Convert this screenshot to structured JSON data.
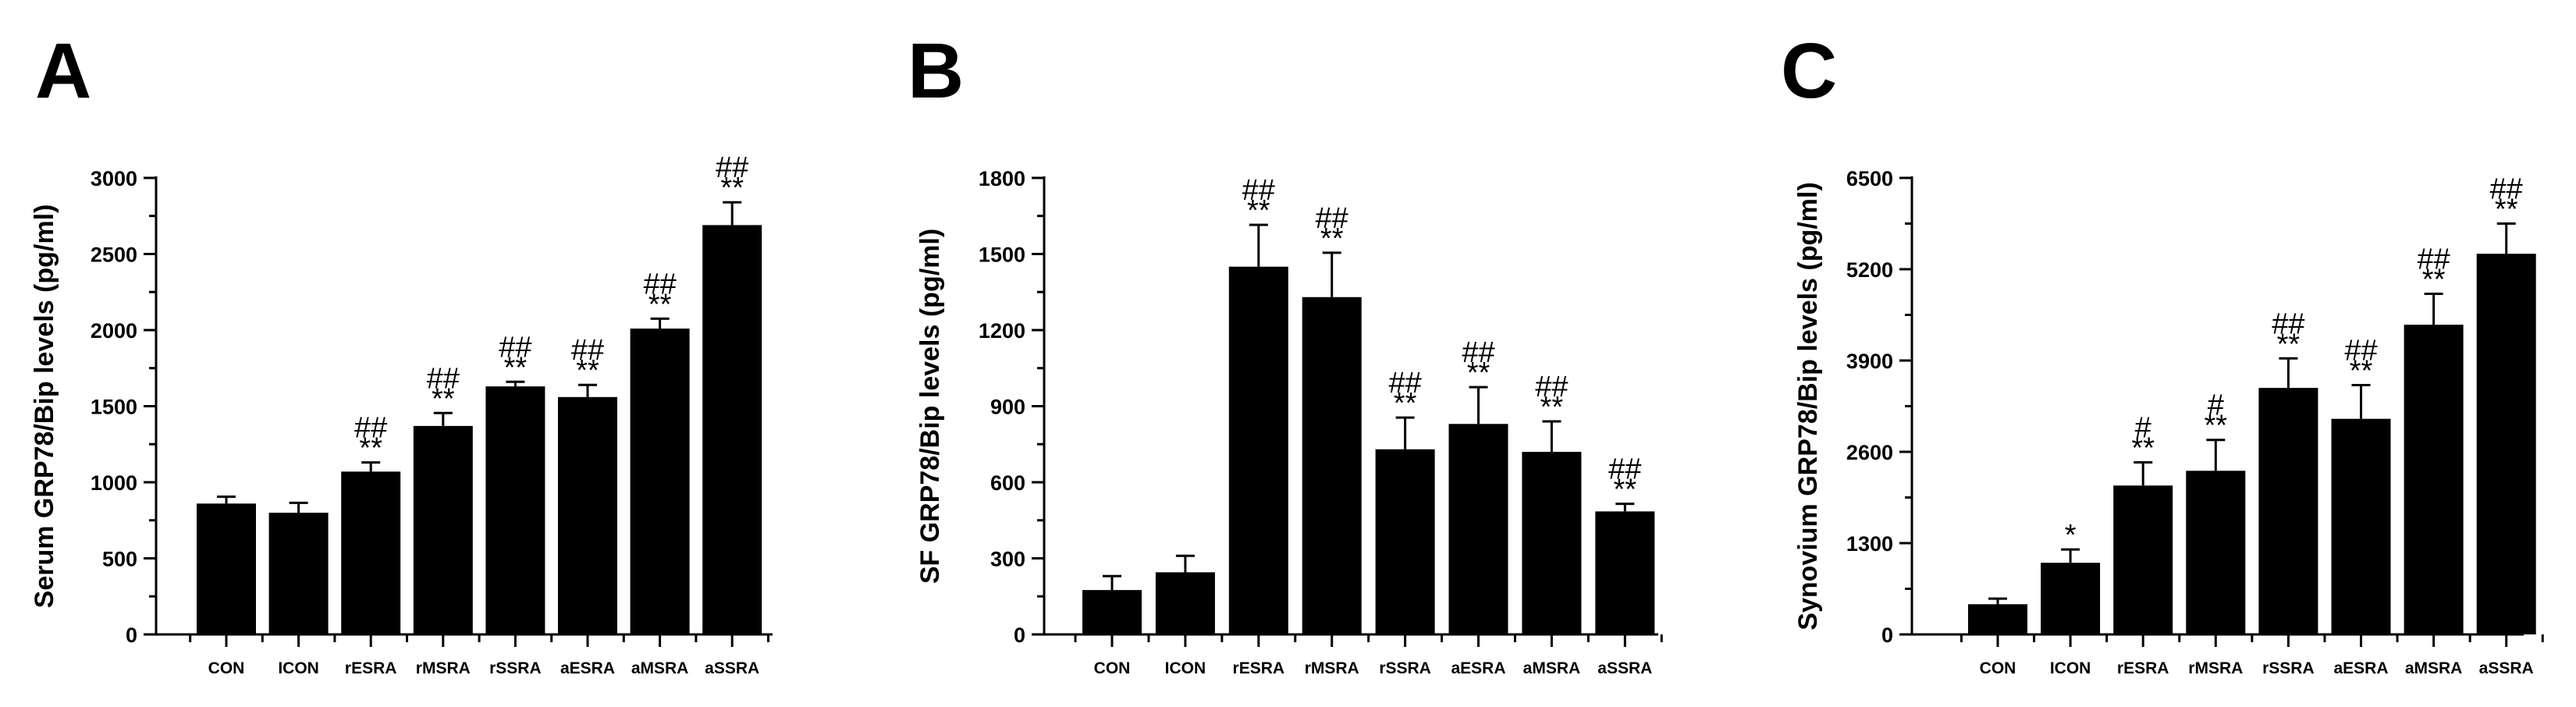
{
  "panels": [
    {
      "letter": "A",
      "chart_data": {
        "type": "bar",
        "ylabel": "Serum GRP78/Bip levels (pg/ml)",
        "xlabel": "",
        "ylim": [
          0,
          3000
        ],
        "yticks": [
          "0",
          "500",
          "1000",
          "1500",
          "2000",
          "2500",
          "3000"
        ],
        "categories": [
          "CON",
          "ICON",
          "rESRA",
          "rMSRA",
          "rSSRA",
          "aESRA",
          "aMSRA",
          "aSSRA"
        ],
        "values": [
          860,
          800,
          1070,
          1370,
          1630,
          1560,
          2010,
          2690
        ],
        "errors": [
          45,
          65,
          60,
          85,
          30,
          80,
          65,
          150
        ],
        "annotations": [
          [],
          [],
          [
            "##",
            "**"
          ],
          [
            "##",
            "**"
          ],
          [
            "##",
            "**"
          ],
          [
            "##",
            "**"
          ],
          [
            "##",
            "**"
          ],
          [
            "##",
            "**"
          ]
        ],
        "color": "#000000"
      }
    },
    {
      "letter": "B",
      "chart_data": {
        "type": "bar",
        "ylabel": "SF GRP78/Bip levels (pg/ml)",
        "xlabel": "",
        "ylim": [
          0,
          1800
        ],
        "yticks": [
          "0",
          "300",
          "600",
          "900",
          "1200",
          "1500",
          "1800"
        ],
        "categories": [
          "CON",
          "ICON",
          "rESRA",
          "rMSRA",
          "rSSRA",
          "aESRA",
          "aMSRA",
          "aSSRA"
        ],
        "values": [
          175,
          245,
          1450,
          1330,
          730,
          830,
          720,
          485
        ],
        "errors": [
          55,
          65,
          165,
          175,
          125,
          145,
          120,
          30
        ],
        "annotations": [
          [],
          [],
          [
            "##",
            "**"
          ],
          [
            "##",
            "**"
          ],
          [
            "##",
            "**"
          ],
          [
            "##",
            "**"
          ],
          [
            "##",
            "**"
          ],
          [
            "##",
            "**"
          ]
        ],
        "color": "#000000"
      }
    },
    {
      "letter": "C",
      "chart_data": {
        "type": "bar",
        "ylabel": "Synovium GRP78/Bip levels (pg/ml)",
        "xlabel": "",
        "ylim": [
          0,
          6500
        ],
        "yticks": [
          "0",
          "1300",
          "2600",
          "3900",
          "5200",
          "6500"
        ],
        "categories": [
          "CON",
          "ICON",
          "rESRA",
          "rMSRA",
          "rSSRA",
          "aESRA",
          "aMSRA",
          "aSSRA"
        ],
        "values": [
          430,
          1020,
          2120,
          2330,
          3510,
          3070,
          4410,
          5420
        ],
        "errors": [
          80,
          190,
          330,
          440,
          420,
          480,
          440,
          430
        ],
        "annotations": [
          [],
          [
            "*"
          ],
          [
            "#",
            "**"
          ],
          [
            "#",
            "**"
          ],
          [
            "##",
            "**"
          ],
          [
            "##",
            "**"
          ],
          [
            "##",
            "**"
          ],
          [
            "##",
            "**"
          ]
        ],
        "color": "#000000"
      }
    }
  ]
}
